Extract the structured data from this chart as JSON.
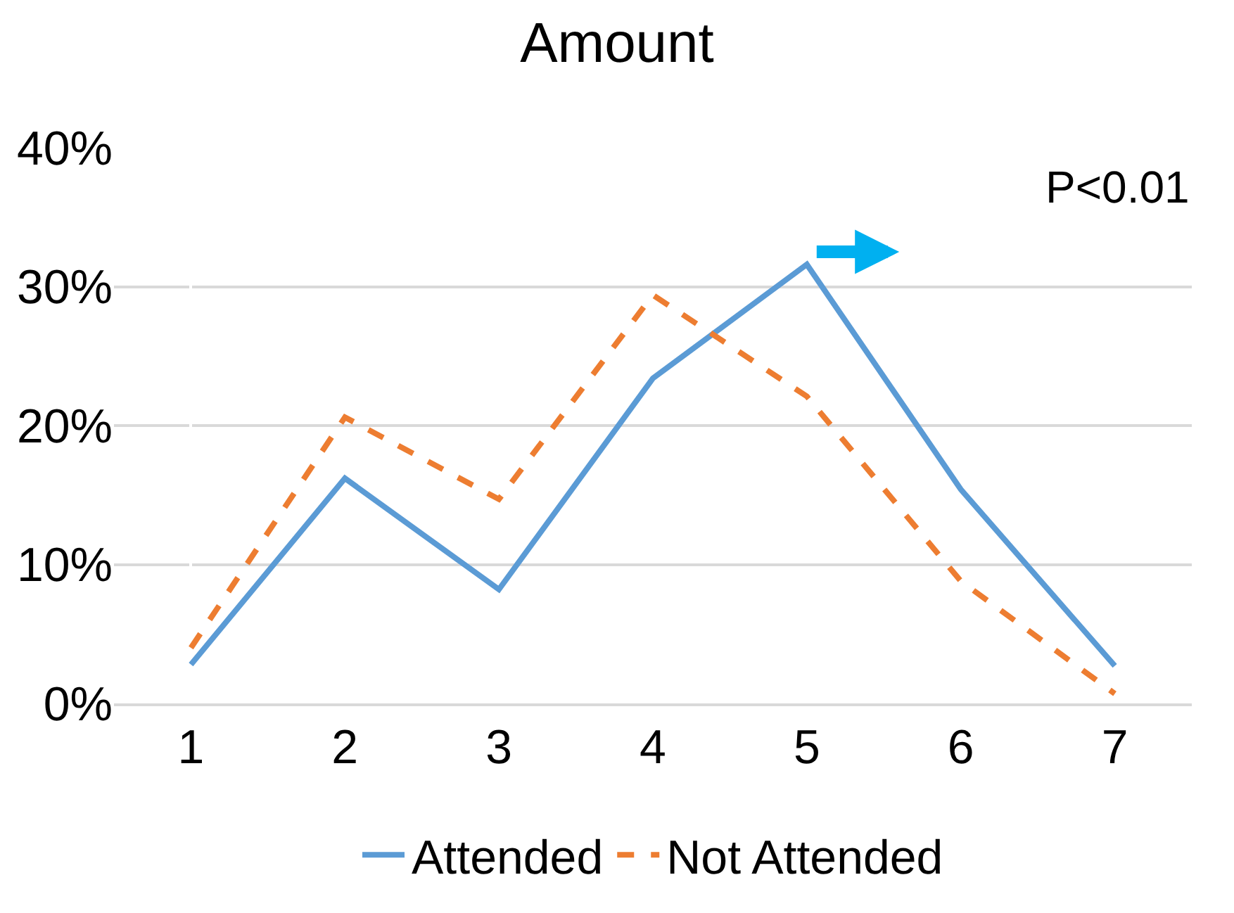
{
  "chart_data": {
    "type": "line",
    "title": "Amount",
    "categories": [
      "1",
      "2",
      "3",
      "4",
      "5",
      "6",
      "7"
    ],
    "series": [
      {
        "name": "Attended",
        "color": "#5b9bd5",
        "line_style": "solid",
        "values": [
          2.8,
          16.2,
          8.2,
          23.4,
          31.6,
          15.4,
          2.7
        ]
      },
      {
        "name": "Not Attended",
        "color": "#ed7d31",
        "line_style": "dashed",
        "values": [
          4.0,
          20.6,
          14.7,
          29.4,
          22.1,
          8.8,
          0.7
        ]
      }
    ],
    "ylim": [
      0,
      40
    ],
    "yticks": [
      {
        "value": 0,
        "label": "0%"
      },
      {
        "value": 10,
        "label": "10%"
      },
      {
        "value": 20,
        "label": "20%"
      },
      {
        "value": 30,
        "label": "30%"
      },
      {
        "value": 40,
        "label": "40%"
      }
    ],
    "grid": "y",
    "legend": "bottom",
    "marker": "none",
    "annotations": [
      "P<0.01"
    ]
  }
}
